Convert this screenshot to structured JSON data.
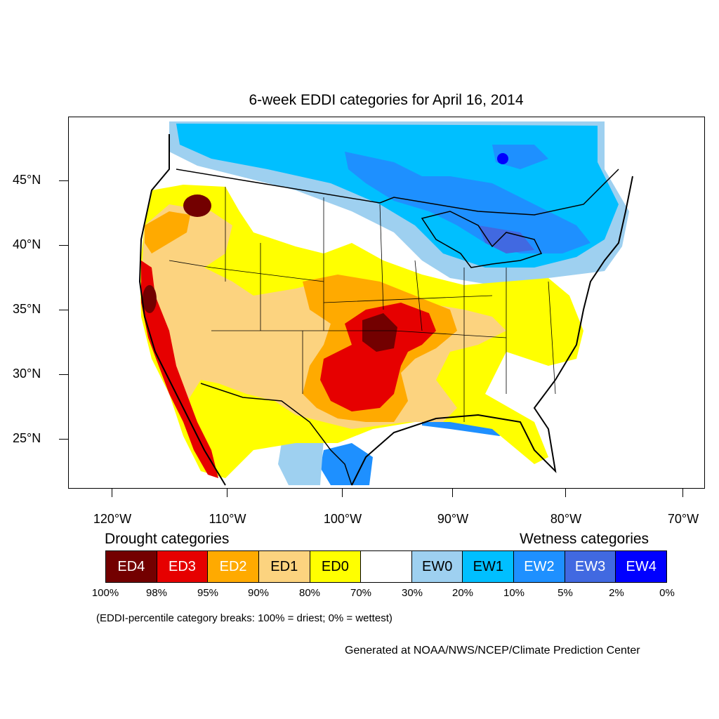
{
  "map": {
    "title": "6-week EDDI categories for April 16, 2014",
    "lat_labels": [
      "45°N",
      "40°N",
      "35°N",
      "30°N",
      "25°N"
    ],
    "lon_labels": [
      "120°W",
      "110°W",
      "100°W",
      "90°W",
      "80°W",
      "70°W"
    ]
  },
  "legend": {
    "drought_heading": "Drought categories",
    "wetness_heading": "Wetness categories",
    "categories": [
      {
        "label": "ED4",
        "color": "#730000",
        "text_color": "#ffffff"
      },
      {
        "label": "ED3",
        "color": "#e60000",
        "text_color": "#ffffff"
      },
      {
        "label": "ED2",
        "color": "#ffaa00",
        "text_color": "#ffffff"
      },
      {
        "label": "ED1",
        "color": "#fcd37f",
        "text_color": "#000000"
      },
      {
        "label": "ED0",
        "color": "#ffff00",
        "text_color": "#000000"
      },
      {
        "label": "",
        "color": "#ffffff",
        "text_color": "#000000"
      },
      {
        "label": "EW0",
        "color": "#9ed0f0",
        "text_color": "#000000"
      },
      {
        "label": "EW1",
        "color": "#00bfff",
        "text_color": "#000000"
      },
      {
        "label": "EW2",
        "color": "#1e90ff",
        "text_color": "#ffffff"
      },
      {
        "label": "EW3",
        "color": "#4169e1",
        "text_color": "#ffffff"
      },
      {
        "label": "EW4",
        "color": "#0000ff",
        "text_color": "#ffffff"
      }
    ],
    "percentiles": [
      "100%",
      "98%",
      "95%",
      "90%",
      "80%",
      "70%",
      "30%",
      "20%",
      "10%",
      "5%",
      "2%",
      "0%"
    ]
  },
  "note": "(EDDI-percentile category breaks: 100% = driest; 0% = wettest)",
  "credit": "Generated at NOAA/NWS/NCEP/Climate Prediction Center"
}
